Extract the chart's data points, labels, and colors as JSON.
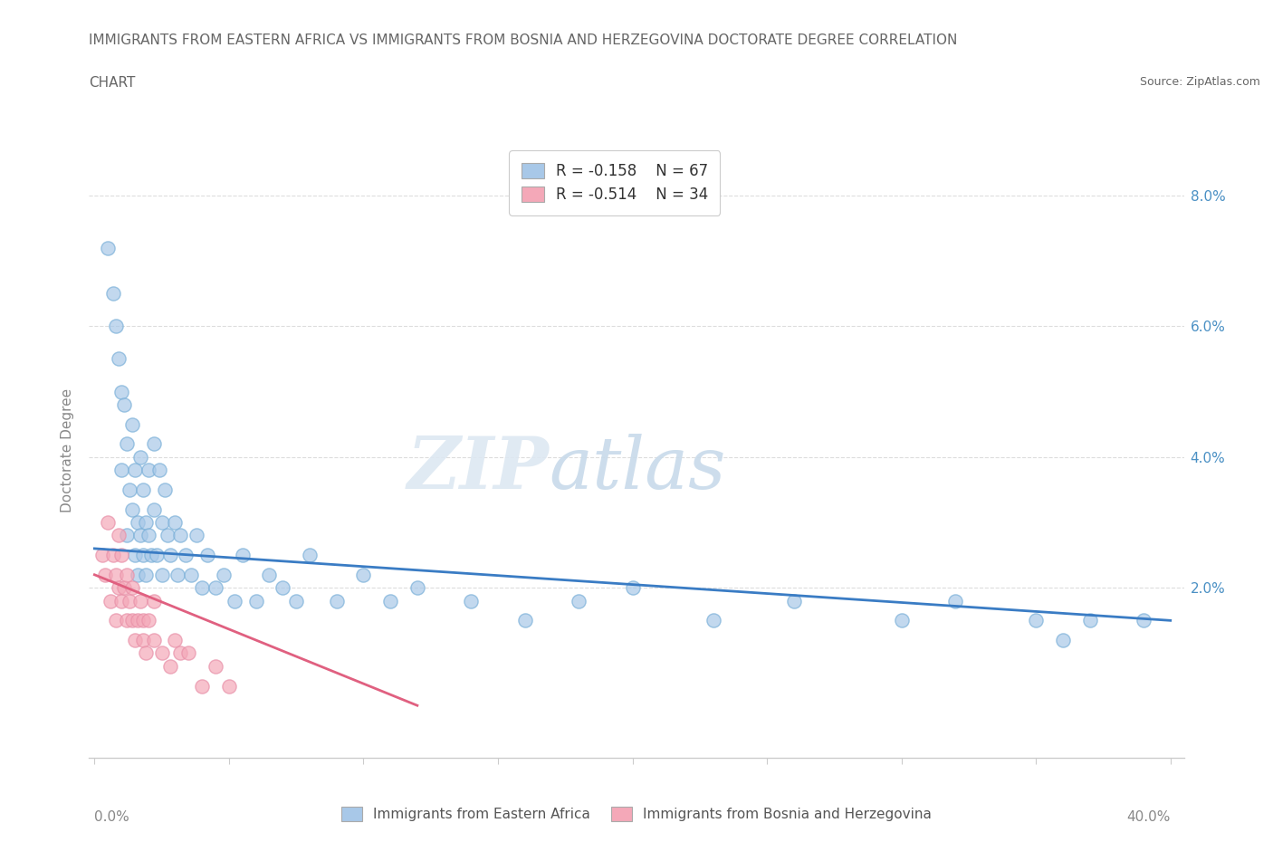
{
  "title_line1": "IMMIGRANTS FROM EASTERN AFRICA VS IMMIGRANTS FROM BOSNIA AND HERZEGOVINA DOCTORATE DEGREE CORRELATION",
  "title_line2": "CHART",
  "source": "Source: ZipAtlas.com",
  "ylabel": "Doctorate Degree",
  "y_ticks": [
    0.0,
    0.02,
    0.04,
    0.06,
    0.08
  ],
  "y_tick_labels": [
    "",
    "2.0%",
    "4.0%",
    "6.0%",
    "8.0%"
  ],
  "x_ticks": [
    0.0,
    0.05,
    0.1,
    0.15,
    0.2,
    0.25,
    0.3,
    0.35,
    0.4
  ],
  "xlim": [
    -0.002,
    0.405
  ],
  "ylim": [
    -0.006,
    0.088
  ],
  "series1_color": "#a8c8e8",
  "series2_color": "#f4a8b8",
  "series1_label": "Immigrants from Eastern Africa",
  "series2_label": "Immigrants from Bosnia and Herzegovina",
  "R1": -0.158,
  "N1": 67,
  "R2": -0.514,
  "N2": 34,
  "line1_color": "#3a7cc4",
  "line2_color": "#e06080",
  "watermark_zip_color": "#dde8f0",
  "watermark_atlas_color": "#c8d8e8",
  "background_color": "#ffffff",
  "grid_color": "#dddddd",
  "spine_color": "#cccccc",
  "title_color": "#666666",
  "axis_label_color": "#888888",
  "tick_label_color": "#4a90c4",
  "series1_x": [
    0.005,
    0.007,
    0.008,
    0.009,
    0.01,
    0.01,
    0.011,
    0.012,
    0.012,
    0.013,
    0.014,
    0.014,
    0.015,
    0.015,
    0.016,
    0.016,
    0.017,
    0.017,
    0.018,
    0.018,
    0.019,
    0.019,
    0.02,
    0.02,
    0.021,
    0.022,
    0.022,
    0.023,
    0.024,
    0.025,
    0.025,
    0.026,
    0.027,
    0.028,
    0.03,
    0.031,
    0.032,
    0.034,
    0.036,
    0.038,
    0.04,
    0.042,
    0.045,
    0.048,
    0.052,
    0.055,
    0.06,
    0.065,
    0.07,
    0.075,
    0.08,
    0.09,
    0.1,
    0.11,
    0.12,
    0.14,
    0.16,
    0.18,
    0.2,
    0.23,
    0.26,
    0.3,
    0.32,
    0.35,
    0.36,
    0.37,
    0.39
  ],
  "series1_y": [
    0.072,
    0.065,
    0.06,
    0.055,
    0.05,
    0.038,
    0.048,
    0.028,
    0.042,
    0.035,
    0.032,
    0.045,
    0.025,
    0.038,
    0.03,
    0.022,
    0.04,
    0.028,
    0.035,
    0.025,
    0.03,
    0.022,
    0.038,
    0.028,
    0.025,
    0.042,
    0.032,
    0.025,
    0.038,
    0.03,
    0.022,
    0.035,
    0.028,
    0.025,
    0.03,
    0.022,
    0.028,
    0.025,
    0.022,
    0.028,
    0.02,
    0.025,
    0.02,
    0.022,
    0.018,
    0.025,
    0.018,
    0.022,
    0.02,
    0.018,
    0.025,
    0.018,
    0.022,
    0.018,
    0.02,
    0.018,
    0.015,
    0.018,
    0.02,
    0.015,
    0.018,
    0.015,
    0.018,
    0.015,
    0.012,
    0.015,
    0.015
  ],
  "series2_x": [
    0.003,
    0.004,
    0.005,
    0.006,
    0.007,
    0.008,
    0.008,
    0.009,
    0.009,
    0.01,
    0.01,
    0.011,
    0.012,
    0.012,
    0.013,
    0.014,
    0.014,
    0.015,
    0.016,
    0.017,
    0.018,
    0.018,
    0.019,
    0.02,
    0.022,
    0.022,
    0.025,
    0.028,
    0.03,
    0.032,
    0.035,
    0.04,
    0.045,
    0.05
  ],
  "series2_y": [
    0.025,
    0.022,
    0.03,
    0.018,
    0.025,
    0.022,
    0.015,
    0.02,
    0.028,
    0.018,
    0.025,
    0.02,
    0.022,
    0.015,
    0.018,
    0.015,
    0.02,
    0.012,
    0.015,
    0.018,
    0.012,
    0.015,
    0.01,
    0.015,
    0.012,
    0.018,
    0.01,
    0.008,
    0.012,
    0.01,
    0.01,
    0.005,
    0.008,
    0.005
  ],
  "line1_x": [
    0.0,
    0.4
  ],
  "line1_y": [
    0.026,
    0.015
  ],
  "line2_x": [
    0.0,
    0.12
  ],
  "line2_y": [
    0.022,
    0.002
  ]
}
